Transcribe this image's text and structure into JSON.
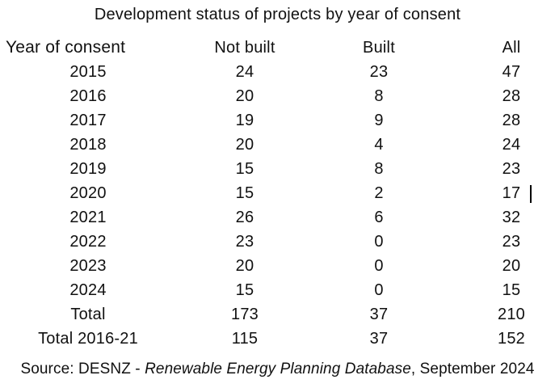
{
  "title": "Development status of projects by year of consent",
  "chart_data": {
    "type": "table",
    "title": "Development status of projects by year of consent",
    "columns": [
      "Year of consent",
      "Not built",
      "Built",
      "All"
    ],
    "rows": [
      [
        "2015",
        "24",
        "23",
        "47"
      ],
      [
        "2016",
        "20",
        "8",
        "28"
      ],
      [
        "2017",
        "19",
        "9",
        "28"
      ],
      [
        "2018",
        "20",
        "4",
        "24"
      ],
      [
        "2019",
        "15",
        "8",
        "23"
      ],
      [
        "2020",
        "15",
        "2",
        "17"
      ],
      [
        "2021",
        "26",
        "6",
        "32"
      ],
      [
        "2022",
        "23",
        "0",
        "23"
      ],
      [
        "2023",
        "20",
        "0",
        "20"
      ],
      [
        "2024",
        "15",
        "0",
        "15"
      ],
      [
        "Total",
        "173",
        "37",
        "210"
      ],
      [
        "Total 2016-21",
        "115",
        "37",
        "152"
      ]
    ],
    "source": "Source: DESNZ - Renewable Energy Planning Database, September 2024",
    "layout": "header row not bold, all cells center-aligned, first header cell left-aligned, no gridlines"
  },
  "source_line": {
    "prefix": "Source: DESNZ - ",
    "italic_title": "Renewable Energy Planning Database",
    "suffix": ", September 2024"
  },
  "cursor": {
    "visible": true,
    "location": "text caret immediately after the 2020 row All value (17)"
  },
  "colors": {
    "background": "#ffffff",
    "text": "#111111"
  }
}
